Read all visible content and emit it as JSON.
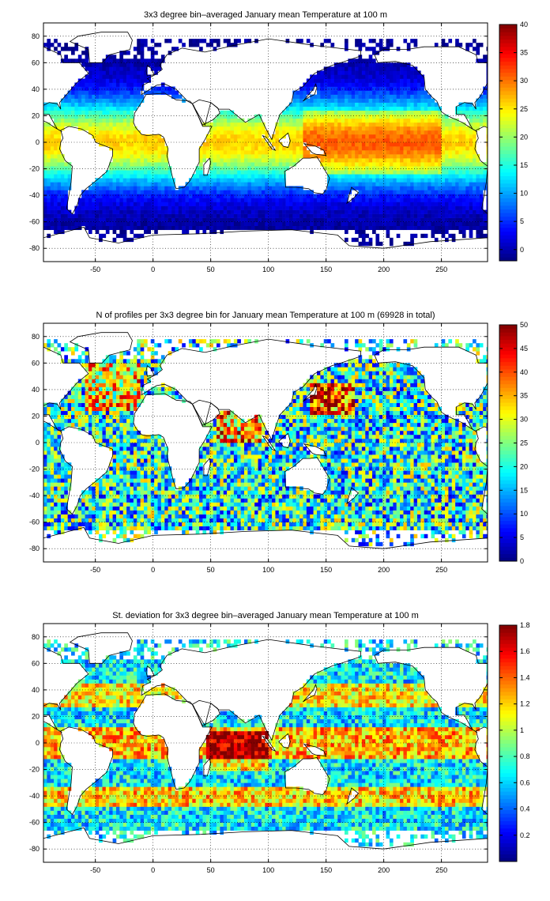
{
  "chart_data": [
    {
      "type": "heatmap",
      "title": "3x3 degree bin–averaged January mean Temperature at 100 m",
      "xlim": [
        -95,
        290
      ],
      "ylim": [
        -90,
        90
      ],
      "xticks": [
        -50,
        0,
        50,
        100,
        150,
        200,
        250
      ],
      "yticks": [
        -80,
        -60,
        -40,
        -20,
        0,
        20,
        40,
        60,
        80
      ],
      "xtick_labels": [
        "-50",
        "0",
        "50",
        "100",
        "150",
        "200",
        "250"
      ],
      "ytick_labels": [
        "-80",
        "-60",
        "-40",
        "-20",
        "0",
        "20",
        "40",
        "60",
        "80"
      ],
      "grid": true,
      "colorbar": {
        "range": [
          -2,
          40
        ],
        "ticks": [
          0,
          5,
          10,
          15,
          20,
          25,
          30,
          35,
          40
        ],
        "tick_labels": [
          "0",
          "5",
          "10",
          "15",
          "20",
          "25",
          "30",
          "35",
          "40"
        ],
        "colormap": "jet"
      }
    },
    {
      "type": "heatmap",
      "title": "N of profiles per 3x3 degree bin for January mean Temperature at 100 m (69928 in total)",
      "xlim": [
        -95,
        290
      ],
      "ylim": [
        -90,
        90
      ],
      "xticks": [
        -50,
        0,
        50,
        100,
        150,
        200,
        250
      ],
      "yticks": [
        -80,
        -60,
        -40,
        -20,
        0,
        20,
        40,
        60,
        80
      ],
      "xtick_labels": [
        "-50",
        "0",
        "50",
        "100",
        "150",
        "200",
        "250"
      ],
      "ytick_labels": [
        "-80",
        "-60",
        "-40",
        "-20",
        "0",
        "20",
        "40",
        "60",
        "80"
      ],
      "grid": true,
      "colorbar": {
        "range": [
          0,
          50
        ],
        "ticks": [
          0,
          5,
          10,
          15,
          20,
          25,
          30,
          35,
          40,
          45,
          50
        ],
        "tick_labels": [
          "0",
          "5",
          "10",
          "15",
          "20",
          "25",
          "30",
          "35",
          "40",
          "45",
          "50"
        ],
        "colormap": "jet"
      }
    },
    {
      "type": "heatmap",
      "title": "St. deviation for 3x3 degree bin–averaged January mean Temperature at 100 m",
      "xlim": [
        -95,
        290
      ],
      "ylim": [
        -90,
        90
      ],
      "xticks": [
        -50,
        0,
        50,
        100,
        150,
        200,
        250
      ],
      "yticks": [
        -80,
        -60,
        -40,
        -20,
        0,
        20,
        40,
        60,
        80
      ],
      "xtick_labels": [
        "-50",
        "0",
        "50",
        "100",
        "150",
        "200",
        "250"
      ],
      "ytick_labels": [
        "-80",
        "-60",
        "-40",
        "-20",
        "0",
        "20",
        "40",
        "60",
        "80"
      ],
      "grid": true,
      "colorbar": {
        "range": [
          0,
          1.8
        ],
        "ticks": [
          0.2,
          0.4,
          0.6,
          0.8,
          1,
          1.2,
          1.4,
          1.6,
          1.8
        ],
        "tick_labels": [
          "0.2",
          "0.4",
          "0.6",
          "0.8",
          "1",
          "1.2",
          "1.4",
          "1.6",
          "1.8"
        ],
        "colormap": "jet"
      }
    }
  ]
}
